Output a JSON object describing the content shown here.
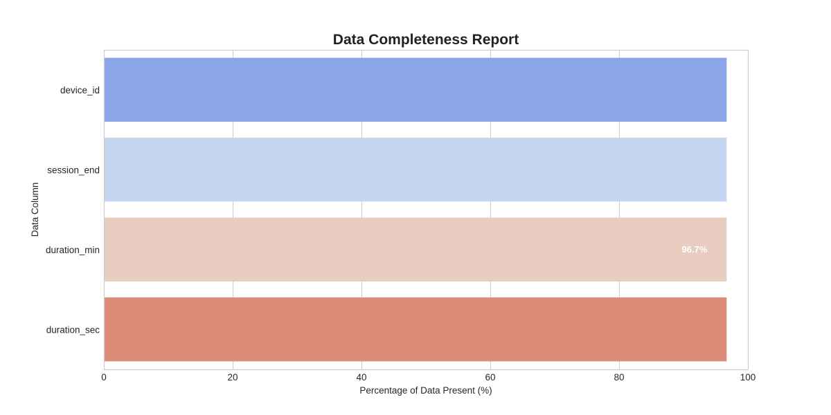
{
  "chart_data": {
    "type": "bar",
    "orientation": "horizontal",
    "title": "Data Completeness Report",
    "xlabel": "Percentage of Data Present (%)",
    "ylabel": "Data Column",
    "categories": [
      "device_id",
      "session_end",
      "duration_min",
      "duration_sec"
    ],
    "values": [
      96.7,
      96.7,
      96.7,
      96.7
    ],
    "colors": [
      "#8aa6e8",
      "#c6d5f0",
      "#e8cdc0",
      "#dd8c78"
    ],
    "xlim": [
      0,
      100
    ],
    "xticks": [
      0,
      20,
      40,
      60,
      80,
      100
    ],
    "grid": true,
    "data_labels": [
      {
        "category": "duration_min",
        "text": "96.7%"
      }
    ]
  }
}
